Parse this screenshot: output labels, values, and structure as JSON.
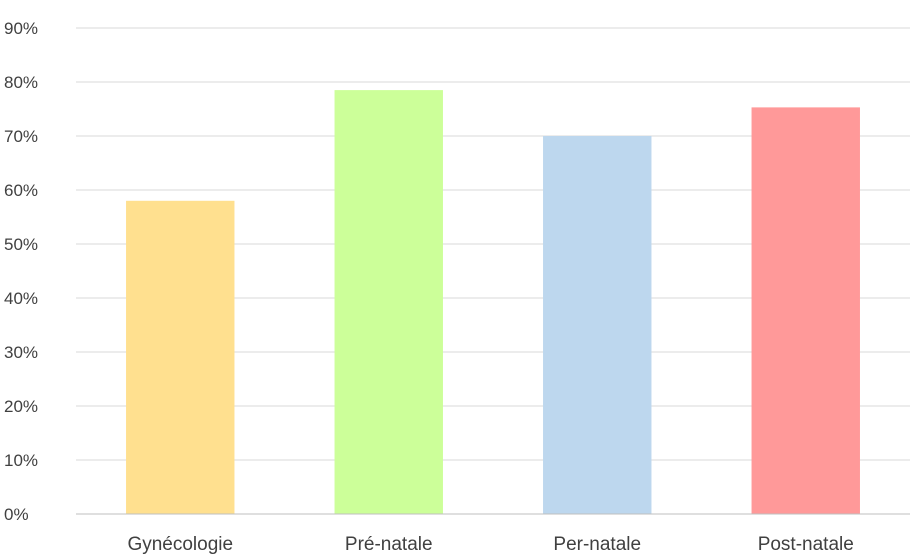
{
  "chart_data": {
    "type": "bar",
    "title": "",
    "xlabel": "",
    "ylabel": "",
    "categories": [
      "Gynécologie",
      "Pré-natale",
      "Per-natale",
      "Post-natale"
    ],
    "values": [
      0.58,
      0.785,
      0.7,
      0.753
    ],
    "colors": [
      "#FFE08F",
      "#CCFF99",
      "#BDD7EE",
      "#FF9999"
    ],
    "ylim": [
      0,
      0.9
    ],
    "yticks": [
      0,
      0.1,
      0.2,
      0.3,
      0.4,
      0.5,
      0.6,
      0.7,
      0.8,
      0.9
    ],
    "ytick_labels": [
      "0%",
      "10%",
      "20%",
      "30%",
      "40%",
      "50%",
      "60%",
      "70%",
      "80%",
      "90%"
    ],
    "grid": true,
    "legend": "none"
  }
}
